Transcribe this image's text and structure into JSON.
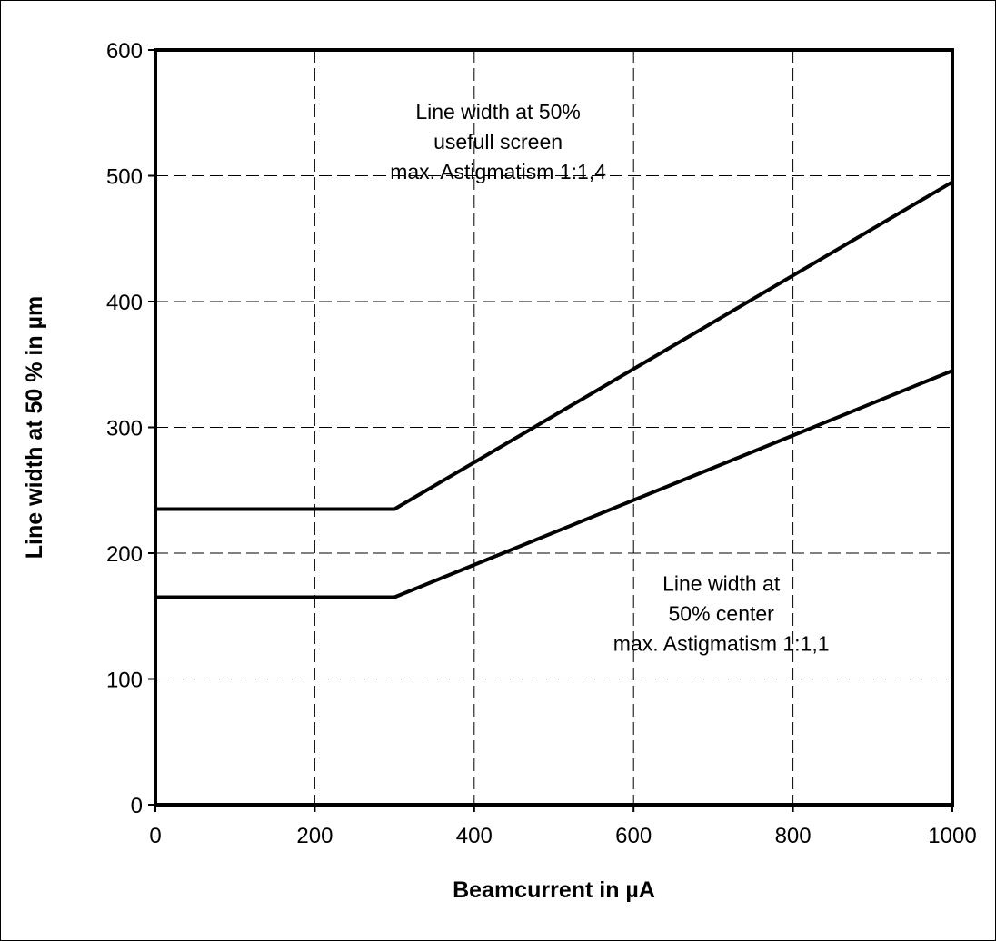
{
  "chart_data": {
    "type": "line",
    "title": "",
    "xlabel": "Beamcurrent in µA",
    "ylabel": "Line width at 50 % in µm",
    "xlim": [
      0,
      1000
    ],
    "ylim": [
      0,
      600
    ],
    "x_ticks": [
      0,
      200,
      400,
      600,
      800,
      1000
    ],
    "y_ticks": [
      0,
      100,
      200,
      300,
      400,
      500,
      600
    ],
    "x_tick_labels": [
      "0",
      "200",
      "400",
      "600",
      "800",
      "1000"
    ],
    "y_tick_labels": [
      "0",
      "100",
      "200",
      "300",
      "400",
      "500",
      "600"
    ],
    "grid": true,
    "legend": "none",
    "line_color": "#000000",
    "series": [
      {
        "x": [
          0,
          300,
          1000
        ],
        "y": [
          235,
          235,
          495
        ]
      },
      {
        "x": [
          0,
          300,
          1000
        ],
        "y": [
          165,
          165,
          345
        ]
      }
    ],
    "annotations": [
      {
        "lines": [
          "Line width at 50%",
          "usefull screen",
          "max. Astigmatism 1:1,4"
        ],
        "x": 430,
        "y": 545
      },
      {
        "lines": [
          "Line width at",
          "50% center",
          "max. Astigmatism 1:1,1"
        ],
        "x": 710,
        "y": 170
      }
    ]
  }
}
